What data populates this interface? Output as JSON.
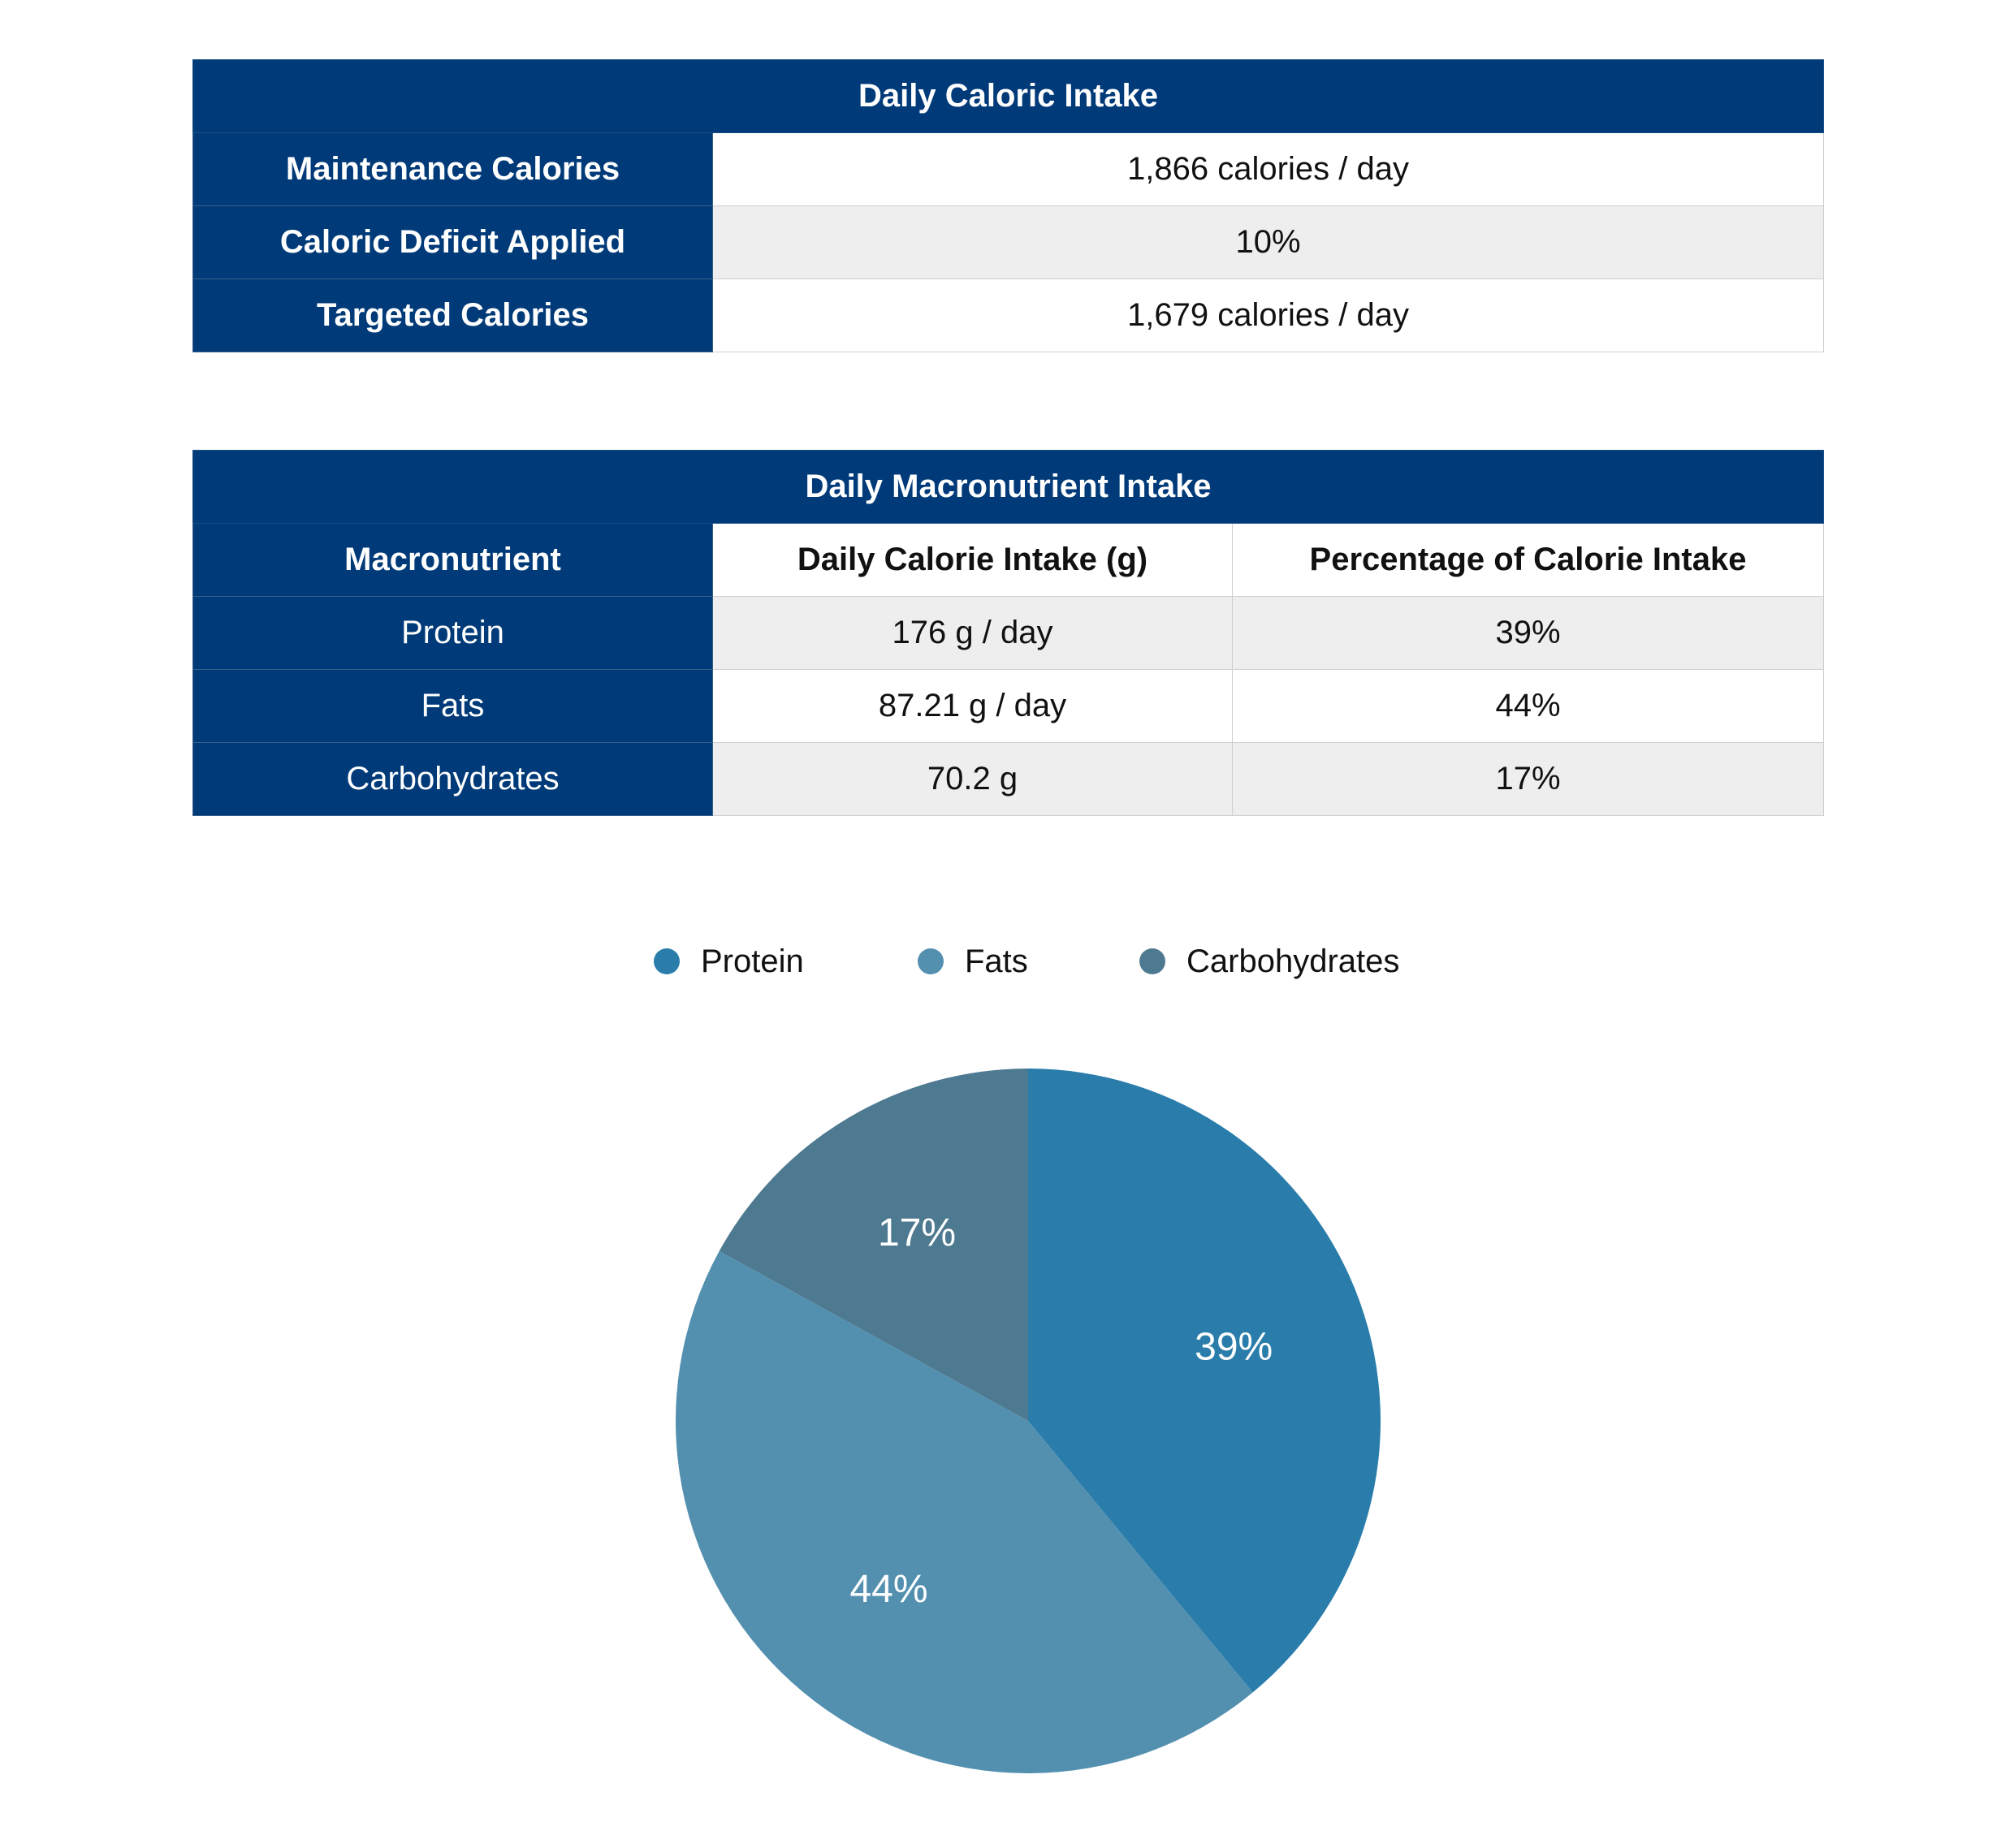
{
  "caloric_table": {
    "title": "Daily Caloric Intake",
    "rows": [
      {
        "label": "Maintenance Calories",
        "value": "1,866 calories / day"
      },
      {
        "label": "Caloric Deficit Applied",
        "value": "10%"
      },
      {
        "label": "Targeted Calories",
        "value": "1,679 calories / day"
      }
    ]
  },
  "macro_table": {
    "title": "Daily Macronutrient Intake",
    "headers": [
      "Macronutrient",
      "Daily Calorie Intake (g)",
      "Percentage of Calorie Intake"
    ],
    "rows": [
      {
        "name": "Protein",
        "grams": "176 g / day",
        "percent": "39%"
      },
      {
        "name": "Fats",
        "grams": "87.21 g / day",
        "percent": "44%"
      },
      {
        "name": "Carbohydrates",
        "grams": "70.2 g",
        "percent": "17%"
      }
    ]
  },
  "legend": [
    {
      "label": "Protein",
      "color": "#2a7dab"
    },
    {
      "label": "Fats",
      "color": "#5390b0"
    },
    {
      "label": "Carbohydrates",
      "color": "#4e7a91"
    }
  ],
  "chart_data": {
    "type": "pie",
    "categories": [
      "Protein",
      "Fats",
      "Carbohydrates"
    ],
    "values": [
      39,
      44,
      17
    ],
    "labels": [
      "39%",
      "44%",
      "17%"
    ],
    "colors": [
      "#2a7dab",
      "#5390b0",
      "#4e7a91"
    ],
    "start_angle": "top",
    "direction": "clockwise",
    "legend_position": "top"
  }
}
